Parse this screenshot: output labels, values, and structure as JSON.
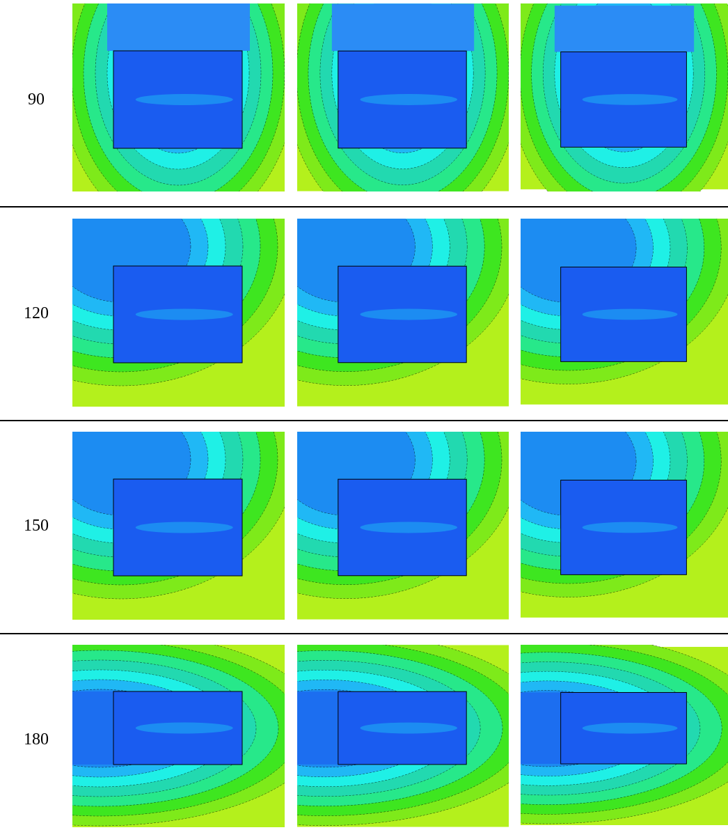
{
  "rows": [
    {
      "label": "90"
    },
    {
      "label": "120"
    },
    {
      "label": "150"
    },
    {
      "label": "180"
    }
  ]
}
